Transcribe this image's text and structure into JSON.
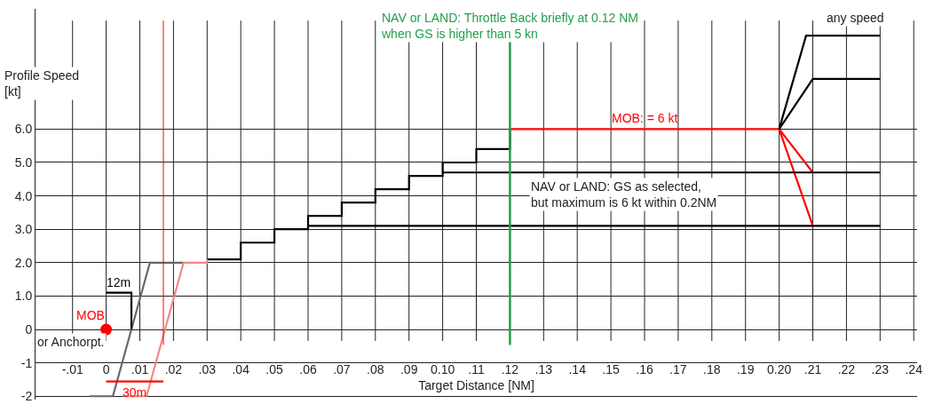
{
  "chart_data": {
    "type": "line",
    "xlabel": "Target Distance [NM]",
    "ylabel": "Profile Speed\n[kt]",
    "xlim": [
      -0.021,
      0.241
    ],
    "ylim": [
      -2.1,
      9.6
    ],
    "xticks": [
      {
        "value": -0.01,
        "label": "-.01"
      },
      {
        "value": 0,
        "label": "0"
      },
      {
        "value": 0.01,
        "label": ".01"
      },
      {
        "value": 0.02,
        "label": ".02"
      },
      {
        "value": 0.03,
        "label": ".03"
      },
      {
        "value": 0.04,
        "label": ".04"
      },
      {
        "value": 0.05,
        "label": ".05"
      },
      {
        "value": 0.06,
        "label": ".06"
      },
      {
        "value": 0.07,
        "label": ".07"
      },
      {
        "value": 0.08,
        "label": ".08"
      },
      {
        "value": 0.09,
        "label": ".09"
      },
      {
        "value": 0.1,
        "label": "0.10"
      },
      {
        "value": 0.11,
        "label": ".11"
      },
      {
        "value": 0.12,
        "label": ".12"
      },
      {
        "value": 0.13,
        "label": ".13"
      },
      {
        "value": 0.14,
        "label": ".14"
      },
      {
        "value": 0.15,
        "label": ".15"
      },
      {
        "value": 0.16,
        "label": ".16"
      },
      {
        "value": 0.17,
        "label": ".17"
      },
      {
        "value": 0.18,
        "label": ".18"
      },
      {
        "value": 0.19,
        "label": ".19"
      },
      {
        "value": 0.2,
        "label": "0.20"
      },
      {
        "value": 0.21,
        "label": ".21"
      },
      {
        "value": 0.22,
        "label": ".22"
      },
      {
        "value": 0.23,
        "label": ".23"
      },
      {
        "value": 0.24,
        "label": ".24"
      }
    ],
    "yticks": [
      -2,
      -1,
      0,
      {
        "value": 1,
        "label": "1.0"
      },
      {
        "value": 2,
        "label": "2.0"
      },
      {
        "value": 3,
        "label": "3.0"
      },
      {
        "value": 4,
        "label": "4.0"
      },
      {
        "value": 5,
        "label": "5.0"
      },
      {
        "value": 6,
        "label": "6.0"
      }
    ],
    "grid": true,
    "marker": "none",
    "line_style": "solid",
    "series": [
      {
        "type": "step",
        "color": "#000000",
        "x": [
          0.03,
          0.04,
          0.05,
          0.06,
          0.07,
          0.08,
          0.09,
          0.1,
          0.11,
          0.12
        ],
        "values": [
          2.1,
          2.6,
          3.0,
          3.4,
          3.8,
          4.2,
          4.6,
          5.0,
          5.4,
          6.0
        ]
      },
      {
        "name": "MOB: = 6 kt",
        "color": "#ff0000",
        "x": [
          0.12,
          0.2
        ],
        "values": [
          6.0,
          6.0
        ]
      },
      {
        "color": "#ff0000",
        "x": [
          0.2,
          0.21
        ],
        "values": [
          6.0,
          4.7
        ]
      },
      {
        "color": "#ff0000",
        "x": [
          0.2,
          0.21
        ],
        "values": [
          6.0,
          3.1
        ]
      },
      {
        "color": "#000000",
        "x": [
          0.1,
          0.23
        ],
        "values": [
          4.7,
          4.7
        ]
      },
      {
        "color": "#000000",
        "x": [
          0.06,
          0.23
        ],
        "values": [
          3.1,
          3.1
        ]
      },
      {
        "color": "#000000",
        "x": [
          0.2,
          0.208,
          0.23
        ],
        "values": [
          6.0,
          8.8,
          8.8
        ]
      },
      {
        "color": "#000000",
        "x": [
          0.2,
          0.21,
          0.23
        ],
        "values": [
          6.0,
          7.5,
          7.5
        ]
      },
      {
        "color": "#666666",
        "x": [
          -0.005,
          0.002,
          0.013,
          0.023
        ],
        "values": [
          -2,
          -2,
          2.0,
          2.0
        ]
      },
      {
        "color": "#f4877f",
        "x": [
          0.005,
          0.012,
          0.023,
          0.03,
          0.03
        ],
        "values": [
          -2,
          -2,
          2.0,
          2.0,
          2.1
        ]
      },
      {
        "name": "12m",
        "color": "#000000",
        "x": [
          0,
          0.0075,
          0.0075
        ],
        "values": [
          1.1,
          1.1,
          0
        ]
      },
      {
        "name": "30m",
        "color": "#ff0000",
        "x": [
          0,
          0.017
        ],
        "values": [
          -1.56,
          -1.56
        ]
      },
      {
        "type": "scatter",
        "name": "MOB",
        "color": "#ff0000",
        "marker": "circle",
        "x": [
          0
        ],
        "values": [
          0
        ]
      }
    ],
    "ref_lines": [
      {
        "axis": "x",
        "value": 0.017,
        "color": "#ff0000"
      },
      {
        "axis": "x",
        "value": 0.12,
        "color": "#22a04b",
        "label": "NAV or LAND: Throttle Back briefly at 0.12 NM\nwhen GS is higher than 5 kn"
      }
    ],
    "annotations": [
      "or Anchorpt.",
      "NAV or LAND: GS as selected,\nbut maximum is 6 kt within 0.2NM",
      "any speed"
    ]
  }
}
